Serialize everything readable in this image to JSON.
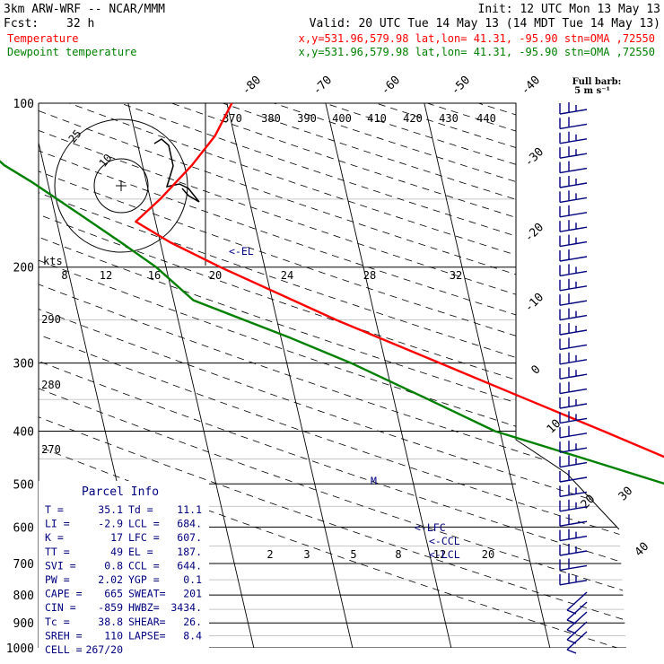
{
  "header": {
    "model": "3km ARW-WRF -- NCAR/MMM",
    "init": "Init: 12 UTC Mon 13 May 13",
    "fcst_label": "Fcst:",
    "fcst_value": "32 h",
    "valid": "Valid: 20 UTC Tue 14 May 13 (14 MDT Tue 14 May 13)",
    "temp_label": "Temperature",
    "temp_loc": "x,y=531.96,579.98   lat,lon= 41.31, -95.90  stn=OMA ,72550",
    "dew_label": "Dewpoint temperature",
    "dew_loc": "x,y=531.96,579.98   lat,lon= 41.31, -95.90  stn=OMA ,72550"
  },
  "colors": {
    "temperature": "#ff0000",
    "dewpoint": "#008000",
    "text": "#000000",
    "info": "#00007f",
    "barbs": "#00007f"
  },
  "chart_data": {
    "type": "line",
    "subtype": "skew-T log-P sounding",
    "y_axis": {
      "scale": "log",
      "ylim": [
        1000,
        100
      ],
      "ticks": [
        100,
        200,
        300,
        400,
        500,
        600,
        700,
        800,
        900,
        1000
      ]
    },
    "isotherm_labels": [
      "-80",
      "-70",
      "-60",
      "-50",
      "-40",
      "-30",
      "-20",
      "-10",
      "0",
      "10",
      "20",
      "30",
      "40"
    ],
    "theta_labels_top": [
      "370",
      "380",
      "390",
      "400",
      "410",
      "420",
      "430",
      "440"
    ],
    "theta_labels_left": [
      "290",
      "280",
      "270"
    ],
    "mixing_ratio_labels": [
      "2",
      "3",
      "5",
      "8",
      "12",
      "20"
    ],
    "hodograph": {
      "unit_label": "kts",
      "rings": [
        "10",
        "25"
      ],
      "speed_ticks": [
        "8",
        "12",
        "16",
        "20",
        "24",
        "28",
        "32"
      ]
    },
    "barb_legend": {
      "line1": "Full barb:",
      "line2": "5 m s⁻¹"
    },
    "annotations": {
      "el": "<-EL",
      "lfc": "<-LFC",
      "ccl": "<-CCL",
      "lcl": "<-LCL",
      "m": "M"
    },
    "series": [
      {
        "name": "Temperature",
        "color": "#ff0000",
        "points": [
          [
            1000,
            36.5
          ],
          [
            975,
            34.0
          ],
          [
            950,
            31.5
          ],
          [
            925,
            29.5
          ],
          [
            900,
            27.2
          ],
          [
            850,
            23.2
          ],
          [
            800,
            19.0
          ],
          [
            750,
            14.8
          ],
          [
            700,
            10.5
          ],
          [
            650,
            6.0
          ],
          [
            600,
            1.5
          ],
          [
            550,
            -3.5
          ],
          [
            500,
            -8.5
          ],
          [
            450,
            -13.5
          ],
          [
            400,
            -19.5
          ],
          [
            350,
            -26.5
          ],
          [
            300,
            -34.5
          ],
          [
            250,
            -44.0
          ],
          [
            200,
            -54.5
          ],
          [
            180,
            -59.0
          ],
          [
            165,
            -62.0
          ],
          [
            150,
            -59.0
          ],
          [
            130,
            -55.0
          ],
          [
            115,
            -52.0
          ],
          [
            100,
            -49.5
          ]
        ]
      },
      {
        "name": "Dewpoint temperature",
        "color": "#008000",
        "points": [
          [
            1000,
            7.0
          ],
          [
            975,
            5.5
          ],
          [
            950,
            11.1
          ],
          [
            930,
            11.5
          ],
          [
            900,
            9.0
          ],
          [
            850,
            2.0
          ],
          [
            820,
            0.5
          ],
          [
            780,
            -2.5
          ],
          [
            750,
            -4.0
          ],
          [
            700,
            -7.0
          ],
          [
            650,
            -7.0
          ],
          [
            600,
            -7.5
          ],
          [
            550,
            -10.0
          ],
          [
            500,
            -14.5
          ],
          [
            450,
            -22.0
          ],
          [
            400,
            -30.5
          ],
          [
            350,
            -36.5
          ],
          [
            300,
            -43.5
          ],
          [
            270,
            -49.0
          ],
          [
            230,
            -58.0
          ],
          [
            200,
            -61.0
          ],
          [
            180,
            -64.0
          ],
          [
            160,
            -67.5
          ],
          [
            140,
            -71.5
          ],
          [
            130,
            -74.0
          ],
          [
            110,
            -77.5
          ],
          [
            100,
            -80.0
          ]
        ]
      }
    ]
  },
  "parcel_info": {
    "title": "Parcel Info",
    "rows": [
      [
        "T  =",
        "35.1",
        "Td =",
        "11.1"
      ],
      [
        "LI =",
        "-2.9",
        "LCL =",
        "684."
      ],
      [
        "K  =",
        "17",
        "LFC =",
        "607."
      ],
      [
        "TT =",
        "49",
        "EL =",
        "187."
      ],
      [
        "SVI =",
        "0.8",
        "CCL =",
        "644."
      ],
      [
        "PW =",
        "2.02",
        "YGP =",
        "0.1"
      ],
      [
        "CAPE =",
        "665",
        "SWEAT=",
        "201"
      ],
      [
        "CIN =",
        "-859",
        "HWBZ=",
        "3434."
      ],
      [
        "Tc =",
        "38.8",
        "SHEAR=",
        "26."
      ],
      [
        "SREH =",
        "110",
        "LAPSE=",
        "8.4"
      ],
      [
        "CELL =",
        "267/20",
        "",
        ""
      ]
    ]
  }
}
